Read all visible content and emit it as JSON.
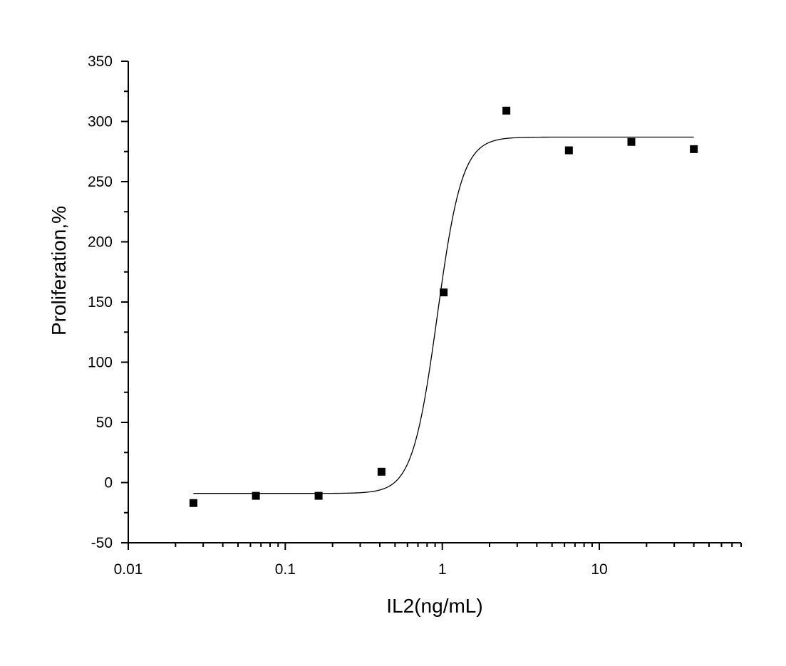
{
  "chart_data": {
    "type": "scatter",
    "title": "",
    "xlabel": "IL2(ng/mL)",
    "ylabel": "Proliferation,%",
    "x_scale": "log",
    "xlim": [
      0.01,
      80
    ],
    "ylim": [
      -50,
      350
    ],
    "x_ticks": [
      {
        "value": 0.01,
        "label": "0.01"
      },
      {
        "value": 0.1,
        "label": "0.1"
      },
      {
        "value": 1,
        "label": "1"
      },
      {
        "value": 10,
        "label": "10"
      }
    ],
    "y_ticks": [
      {
        "value": -50,
        "label": "-50"
      },
      {
        "value": 0,
        "label": "0"
      },
      {
        "value": 50,
        "label": "50"
      },
      {
        "value": 100,
        "label": "100"
      },
      {
        "value": 150,
        "label": "150"
      },
      {
        "value": 200,
        "label": "200"
      },
      {
        "value": 250,
        "label": "250"
      },
      {
        "value": 300,
        "label": "300"
      },
      {
        "value": 350,
        "label": "350"
      }
    ],
    "points": [
      {
        "x": 0.026,
        "y": -17
      },
      {
        "x": 0.065,
        "y": -11
      },
      {
        "x": 0.163,
        "y": -11
      },
      {
        "x": 0.41,
        "y": 9
      },
      {
        "x": 1.02,
        "y": 158
      },
      {
        "x": 2.56,
        "y": 309
      },
      {
        "x": 6.4,
        "y": 276
      },
      {
        "x": 16,
        "y": 283
      },
      {
        "x": 40,
        "y": 277
      }
    ],
    "fit_curve": {
      "model": "logistic",
      "bottom": -9,
      "top": 287,
      "ec50": 0.93,
      "hill": 5.5,
      "x_range": [
        0.026,
        40
      ]
    },
    "grid": false,
    "legend": "none",
    "marker_color": "#000000",
    "line_color": "#000000"
  }
}
